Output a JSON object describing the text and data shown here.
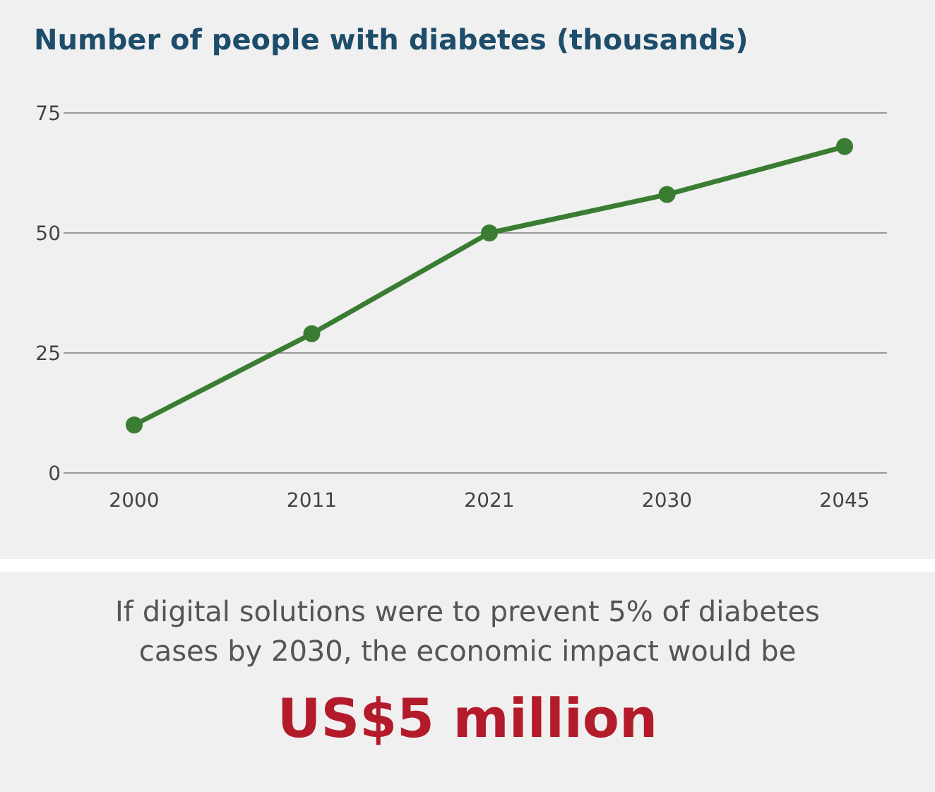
{
  "chart_data": {
    "type": "line",
    "title": "Number of people with diabetes (thousands)",
    "categories": [
      "2000",
      "2011",
      "2021",
      "2030",
      "2045"
    ],
    "series": [
      {
        "color": "#3a7d32",
        "values": [
          10,
          29,
          50,
          58,
          68
        ]
      }
    ],
    "ylim": [
      0,
      75
    ],
    "yticks": [
      0,
      25,
      50,
      75
    ],
    "grid": "y",
    "marker": "circle",
    "line_style": "solid",
    "annotations": [
      "If digital solutions were to prevent 5% of diabetes cases by 2030, the economic impact would be",
      "US$5 million"
    ]
  }
}
